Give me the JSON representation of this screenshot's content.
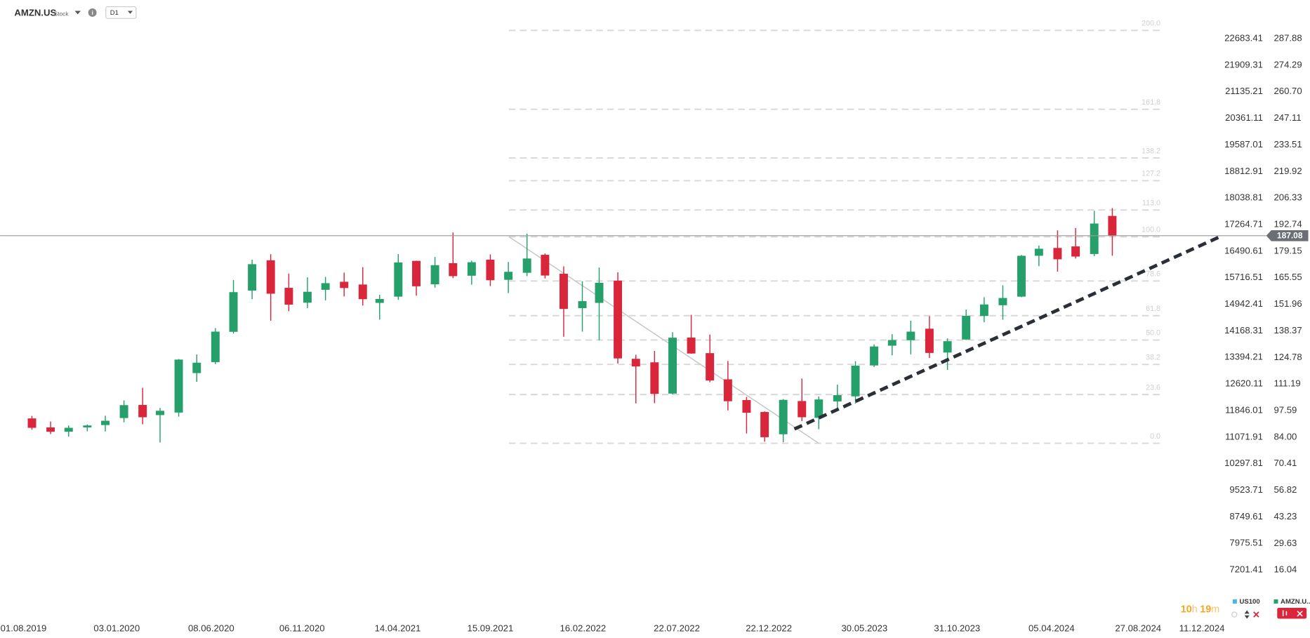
{
  "header": {
    "symbol": "AMZN.US",
    "kind": "Stock",
    "interval": "D1"
  },
  "chart_data": {
    "type": "candlestick",
    "x": [
      "15.08.2019",
      "15.09.2019",
      "15.10.2019",
      "15.11.2019",
      "15.12.2019",
      "15.01.2020",
      "15.02.2020",
      "15.03.2020",
      "15.04.2020",
      "15.05.2020",
      "15.06.2020",
      "15.07.2020",
      "15.08.2020",
      "15.09.2020",
      "15.10.2020",
      "15.11.2020",
      "15.12.2020",
      "15.01.2021",
      "15.02.2021",
      "15.03.2021",
      "15.04.2021",
      "15.05.2021",
      "15.06.2021",
      "15.07.2021",
      "15.08.2021",
      "15.09.2021",
      "15.10.2021",
      "15.11.2021",
      "15.12.2021",
      "15.01.2022",
      "15.02.2022",
      "15.03.2022",
      "15.04.2022",
      "15.05.2022",
      "15.06.2022",
      "15.07.2022",
      "15.08.2022",
      "15.09.2022",
      "15.10.2022",
      "15.11.2022",
      "15.12.2022",
      "15.01.2023",
      "15.02.2023",
      "15.03.2023",
      "15.04.2023",
      "15.05.2023",
      "15.06.2023",
      "15.07.2023",
      "15.08.2023",
      "15.09.2023",
      "15.10.2023",
      "15.11.2023",
      "15.12.2023",
      "15.01.2024",
      "15.02.2024",
      "15.03.2024",
      "15.04.2024",
      "15.05.2024",
      "15.06.2024",
      "15.07.2024"
    ],
    "open": [
      93.6,
      89.0,
      86.8,
      89.0,
      90.2,
      93.8,
      100.5,
      95.3,
      96.6,
      116.8,
      122.4,
      137.9,
      159.0,
      174.5,
      160.4,
      152.8,
      159.4,
      163.5,
      162.1,
      152.7,
      155.9,
      174.2,
      162.2,
      173.0,
      166.6,
      174.8,
      164.5,
      168.1,
      177.3,
      167.6,
      150.0,
      152.7,
      164.1,
      124.1,
      122.3,
      106.3,
      134.96,
      127.0,
      113.6,
      103.0,
      96.9,
      85.5,
      102.5,
      93.9,
      102.3,
      104.9,
      120.7,
      130.8,
      133.6,
      139.5,
      127.3,
      133.96,
      146.0,
      151.5,
      155.9,
      176.8,
      180.8,
      181.6,
      177.7,
      197.2
    ],
    "high": [
      94.9,
      92.0,
      90.0,
      90.5,
      95.0,
      102.8,
      109.3,
      99.0,
      124.0,
      126.3,
      139.8,
      164.4,
      174.8,
      177.6,
      167.7,
      165.8,
      166.0,
      168.2,
      171.0,
      156.8,
      177.7,
      174.3,
      176.2,
      188.7,
      174.3,
      177.5,
      173.6,
      188.1,
      178.0,
      171.4,
      163.8,
      170.8,
      168.4,
      126.2,
      128.1,
      137.7,
      146.6,
      136.5,
      123.0,
      104.6,
      97.2,
      103.5,
      114.0,
      104.8,
      110.9,
      122.9,
      131.5,
      136.7,
      143.6,
      145.9,
      134.5,
      149.3,
      155.6,
      161.7,
      177.2,
      182.0,
      189.8,
      191.0,
      199.8,
      201.2
    ],
    "low": [
      87.8,
      85.6,
      84.3,
      87.0,
      86.9,
      91.6,
      90.6,
      81.3,
      94.5,
      112.3,
      121.4,
      137.0,
      154.6,
      143.6,
      148.4,
      150.0,
      154.0,
      156.0,
      151.3,
      144.1,
      154.3,
      156.4,
      160.5,
      165.4,
      162.0,
      161.3,
      157.7,
      166.4,
      165.2,
      135.4,
      138.0,
      133.6,
      121.6,
      101.3,
      101.4,
      105.9,
      126.7,
      112.1,
      97.7,
      85.9,
      81.7,
      81.4,
      92.2,
      88.1,
      97.7,
      101.2,
      119.9,
      125.9,
      126.4,
      124.5,
      118.4,
      133.7,
      142.8,
      144.1,
      155.6,
      171.5,
      168.7,
      175.4,
      176.6,
      176.8
    ],
    "close": [
      88.8,
      86.8,
      88.8,
      90.0,
      92.4,
      100.4,
      94.2,
      97.5,
      123.7,
      122.1,
      138.0,
      158.2,
      172.5,
      157.4,
      151.8,
      158.4,
      162.8,
      160.3,
      154.6,
      154.7,
      173.4,
      161.2,
      172.0,
      166.4,
      173.5,
      164.3,
      168.6,
      175.4,
      166.7,
      149.6,
      153.6,
      163.0,
      124.3,
      120.2,
      106.2,
      134.9,
      126.8,
      113.0,
      102.4,
      96.5,
      84.0,
      103.1,
      94.2,
      103.3,
      105.5,
      120.6,
      130.4,
      133.7,
      138.0,
      127.1,
      133.1,
      146.1,
      151.9,
      155.2,
      176.8,
      180.4,
      175.0,
      176.4,
      193.3,
      186.98
    ],
    "color_up": "#26a06b",
    "color_down": "#d9263b",
    "xlim": [
      "23.06.2019",
      "13.01.2025"
    ],
    "xticks": [
      "01.08.2019",
      "03.01.2020",
      "08.06.2020",
      "06.11.2020",
      "14.04.2021",
      "15.09.2021",
      "16.02.2022",
      "22.07.2022",
      "22.12.2022",
      "30.05.2023",
      "31.10.2023",
      "05.04.2024",
      "27.08.2024",
      "11.12.2024"
    ],
    "ylim": [
      0,
      300
    ],
    "yticks": [
      287.88,
      274.29,
      {
        "value": 260.7,
        "label": "260.70"
      },
      247.11,
      233.51,
      219.92,
      206.33,
      192.74,
      179.15,
      165.55,
      151.96,
      138.37,
      124.78,
      111.19,
      97.59,
      {
        "value": 84,
        "label": "84.00"
      },
      70.41,
      56.82,
      43.23,
      29.63,
      16.04
    ],
    "y2lim": [
      6286.7,
      23373.1
    ],
    "y2ticks": [
      22683.41,
      21909.31,
      21135.21,
      20361.11,
      19587.01,
      18812.91,
      18038.81,
      17264.71,
      16490.61,
      15716.51,
      14942.41,
      14168.31,
      13394.21,
      12620.11,
      11846.01,
      11071.91,
      10297.81,
      9523.71,
      8749.61,
      7975.51,
      7201.41
    ],
    "grid": false,
    "last_price": 187.08,
    "fibonacci": {
      "low": 80.9,
      "high": 186.5,
      "levels": [
        {
          "value": 0,
          "label": "0.0"
        },
        23.6,
        38.2,
        {
          "value": 50,
          "label": "50.0"
        },
        61.8,
        78.6,
        {
          "value": 100,
          "label": "100.0"
        },
        {
          "value": 113,
          "label": "113.0"
        },
        127.2,
        138.2,
        161.8,
        {
          "value": 200,
          "label": "200.0"
        }
      ]
    },
    "legend": [
      {
        "name": "US100",
        "color": "#4db3ec"
      },
      {
        "name": "AMZN.U...",
        "color": "#26a06b"
      }
    ]
  },
  "timer": [
    "10",
    "h",
    "19",
    "m"
  ]
}
